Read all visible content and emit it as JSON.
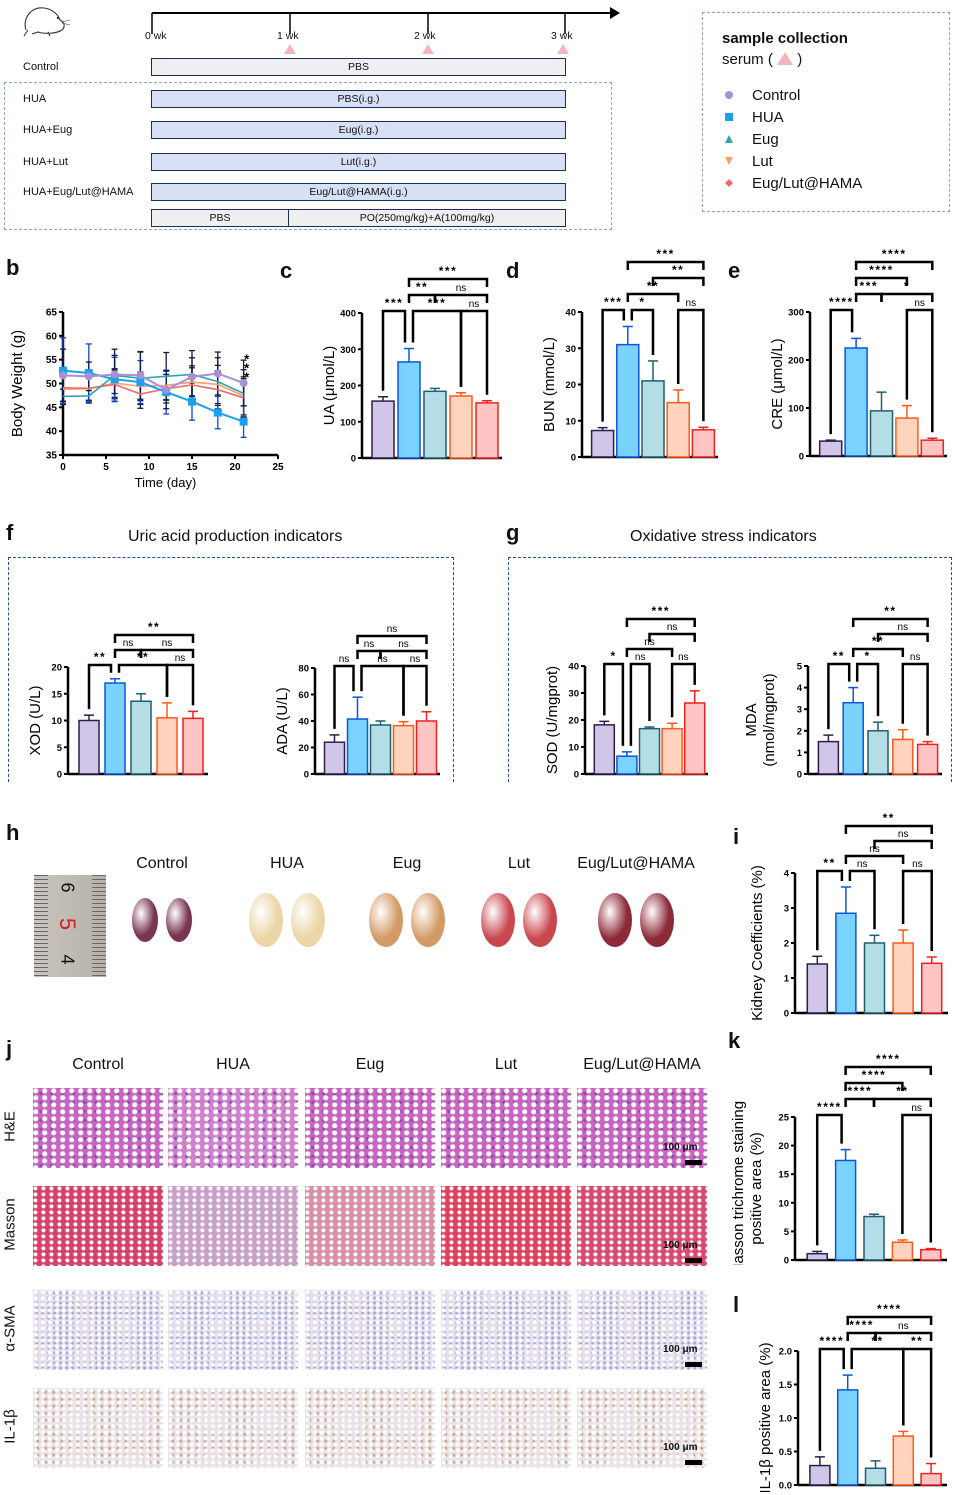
{
  "panel_a": {
    "timeline": {
      "ticks": [
        "0 wk",
        "1 wk",
        "2 wk",
        "3 wk"
      ]
    },
    "groups": [
      {
        "label": "Control",
        "bars": [
          {
            "text": "PBS",
            "style": "gray"
          }
        ]
      },
      {
        "label": "HUA",
        "bars": [
          {
            "text": "PBS(i.g.)",
            "style": "blue"
          }
        ]
      },
      {
        "label": "HUA+Eug",
        "bars": [
          {
            "text": "Eug(i.g.)",
            "style": "blue"
          }
        ]
      },
      {
        "label": "HUA+Lut",
        "bars": [
          {
            "text": "Lut(i.g.)",
            "style": "blue"
          }
        ]
      },
      {
        "label": "HUA+Eug/Lut@HAMA",
        "bars": [
          {
            "text": "Eug/Lut@HAMA(i.g.)",
            "style": "blue"
          }
        ]
      }
    ],
    "induction": {
      "pre": "PBS",
      "post": "PO(250mg/kg)+A(100mg/kg)"
    },
    "legend": {
      "title": "sample collection",
      "serum_label": "serum (",
      "serum_close": ")",
      "items": [
        {
          "label": "Control",
          "marker": "circle",
          "color": "#a98fd3"
        },
        {
          "label": "HUA",
          "marker": "square",
          "color": "#1aa0f0"
        },
        {
          "label": "Eug",
          "marker": "triangle-up",
          "color": "#2fa3b5"
        },
        {
          "label": "Lut",
          "marker": "triangle-down",
          "color": "#f5a06a"
        },
        {
          "label": "Eug/Lut@HAMA",
          "marker": "diamond",
          "color": "#f06a6a"
        }
      ]
    }
  },
  "labels": {
    "b": "b",
    "c": "c",
    "d": "d",
    "e": "e",
    "f": "f",
    "g": "g",
    "h": "h",
    "i": "i",
    "j": "j",
    "k": "k",
    "l": "l",
    "f_title": "Uric acid production indicators",
    "g_title": "Oxidative stress indicators"
  },
  "groups": [
    "Control",
    "HUA",
    "Eug",
    "Lut",
    "Eug/Lut@HAMA"
  ],
  "colors": {
    "fill": [
      "#d2c6e8",
      "#7ad3ff",
      "#b5dde6",
      "#ffd4bf",
      "#ffc4c4"
    ],
    "stroke": [
      "#2a1f4d",
      "#1055d8",
      "#1f5f70",
      "#ff5a1a",
      "#ee2020"
    ]
  },
  "chart_data": [
    {
      "id": "b",
      "type": "line",
      "xlabel": "Time (day)",
      "ylabel": "Body Weight (g)",
      "xlim": [
        0,
        25
      ],
      "ylim": [
        35,
        65
      ],
      "xticks": [
        0,
        5,
        10,
        15,
        20,
        25
      ],
      "yticks": [
        35,
        40,
        45,
        50,
        55,
        60,
        65
      ],
      "x": [
        0,
        3,
        6,
        9,
        12,
        15,
        18,
        21
      ],
      "annotation": "***",
      "series": [
        {
          "name": "Lut",
          "color": "#f5a06a",
          "values": [
            48.8,
            48.9,
            50.1,
            49.4,
            49.6,
            50.3,
            49.8,
            47.4
          ],
          "err": [
            2.5,
            2.5,
            3,
            3,
            3,
            3,
            4,
            4
          ]
        },
        {
          "name": "Eug/Lut@HAMA",
          "color": "#f06a6a",
          "values": [
            49.1,
            49.0,
            49.8,
            47.8,
            48.9,
            49.7,
            48.7,
            47.0
          ],
          "err": [
            3.5,
            2.5,
            3,
            3,
            3,
            4,
            4,
            4
          ]
        },
        {
          "name": "Eug",
          "color": "#2fa3b5",
          "values": [
            47.3,
            47.4,
            51.7,
            51.1,
            51.5,
            51.9,
            50.4,
            47.9
          ],
          "err": [
            1.5,
            1.5,
            5.5,
            5.5,
            5,
            5,
            5,
            5
          ]
        },
        {
          "name": "HUA",
          "color": "#1aa0f0",
          "values": [
            52.7,
            52.2,
            50.9,
            50.3,
            48.2,
            46.2,
            43.9,
            42.0
          ],
          "err": [
            6.9,
            6.1,
            4.6,
            4.5,
            4.6,
            3.9,
            3.4,
            3.3
          ]
        },
        {
          "name": "Control",
          "color": "#a98fd3",
          "values": [
            51.7,
            51.5,
            51.9,
            51.7,
            48.7,
            51.4,
            52.1,
            50.1
          ],
          "err": [
            5.5,
            3,
            4,
            5,
            4,
            4,
            4.5,
            4.8
          ]
        }
      ]
    },
    {
      "id": "c",
      "type": "bar",
      "ylabel": "UA (μmol/L)",
      "ylim": [
        0,
        400
      ],
      "yticks": [
        0,
        100,
        200,
        300,
        400
      ],
      "categories": [
        "Control",
        "HUA",
        "Eug",
        "Lut",
        "Eug/Lut@HAMA"
      ],
      "values": [
        157,
        265,
        184,
        171,
        152
      ],
      "err": [
        12,
        37,
        8,
        9,
        6
      ],
      "comparisons": [
        {
          "a": 0,
          "b": 1,
          "label": "***",
          "level": 0
        },
        {
          "a": 1,
          "b": 3,
          "label": "***",
          "level": 0
        },
        {
          "a": 3,
          "b": 4,
          "label": "ns",
          "level": 0
        },
        {
          "a": 1,
          "b": 2,
          "label": "**",
          "level": 1
        },
        {
          "a": 2,
          "b": 4,
          "label": "ns",
          "level": 1
        },
        {
          "a": 1,
          "b": 4,
          "label": "***",
          "level": 2
        }
      ]
    },
    {
      "id": "d",
      "type": "bar",
      "ylabel": "BUN (mmol/L)",
      "ylim": [
        0,
        40
      ],
      "yticks": [
        0,
        10,
        20,
        30,
        40
      ],
      "categories": [
        "Control",
        "HUA",
        "Eug",
        "Lut",
        "Eug/Lut@HAMA"
      ],
      "values": [
        7.3,
        31,
        21,
        15,
        7.5
      ],
      "err": [
        0.8,
        5,
        5.5,
        3.5,
        0.7
      ],
      "comparisons": [
        {
          "a": 0,
          "b": 1,
          "label": "***",
          "level": 0
        },
        {
          "a": 1,
          "b": 2,
          "label": "*",
          "level": 0
        },
        {
          "a": 3,
          "b": 4,
          "label": "ns",
          "level": 0
        },
        {
          "a": 1,
          "b": 3,
          "label": "**",
          "level": 1
        },
        {
          "a": 2,
          "b": 4,
          "label": "**",
          "level": 2
        },
        {
          "a": 1,
          "b": 4,
          "label": "***",
          "level": 3
        }
      ]
    },
    {
      "id": "e",
      "type": "bar",
      "ylabel": "CRE (μmol/L)",
      "ylim": [
        0,
        300
      ],
      "yticks": [
        0,
        100,
        200,
        300
      ],
      "categories": [
        "Control",
        "HUA",
        "Eug",
        "Lut",
        "Eug/Lut@HAMA"
      ],
      "values": [
        31,
        225,
        94,
        79,
        33
      ],
      "err": [
        2,
        20,
        39,
        26,
        4
      ],
      "comparisons": [
        {
          "a": 0,
          "b": 1,
          "label": "****",
          "level": 0
        },
        {
          "a": 3,
          "b": 4,
          "label": "ns",
          "level": 0
        },
        {
          "a": 1,
          "b": 2,
          "label": "***",
          "level": 1
        },
        {
          "a": 2,
          "b": 4,
          "label": "*",
          "level": 1
        },
        {
          "a": 1,
          "b": 3,
          "label": "****",
          "level": 2
        },
        {
          "a": 1,
          "b": 4,
          "label": "****",
          "level": 3
        }
      ]
    },
    {
      "id": "f1",
      "type": "bar",
      "ylabel": "XOD (U/L)",
      "ylim": [
        0,
        20
      ],
      "yticks": [
        0,
        5,
        10,
        15,
        20
      ],
      "categories": [
        "Control",
        "HUA",
        "Eug",
        "Lut",
        "Eug/Lut@HAMA"
      ],
      "values": [
        10,
        17,
        13.6,
        10.5,
        10.4
      ],
      "err": [
        1,
        0.8,
        1.4,
        2.8,
        1.3
      ],
      "comparisons": [
        {
          "a": 0,
          "b": 1,
          "label": "**",
          "level": 0
        },
        {
          "a": 1,
          "b": 3,
          "label": "**",
          "level": 0
        },
        {
          "a": 3,
          "b": 4,
          "label": "ns",
          "level": 0
        },
        {
          "a": 1,
          "b": 2,
          "label": "ns",
          "level": 1
        },
        {
          "a": 2,
          "b": 4,
          "label": "ns",
          "level": 1
        },
        {
          "a": 1,
          "b": 4,
          "label": "**",
          "level": 2
        }
      ]
    },
    {
      "id": "f2",
      "type": "bar",
      "ylabel": "ADA (U/L)",
      "ylim": [
        0,
        80
      ],
      "yticks": [
        0,
        20,
        40,
        60,
        80
      ],
      "categories": [
        "Control",
        "HUA",
        "Eug",
        "Lut",
        "Eug/Lut@HAMA"
      ],
      "values": [
        24,
        41.5,
        37,
        36.5,
        40
      ],
      "err": [
        5.5,
        16.5,
        3,
        3,
        7
      ],
      "comparisons": [
        {
          "a": 0,
          "b": 1,
          "label": "ns",
          "level": 0
        },
        {
          "a": 1,
          "b": 3,
          "label": "ns",
          "level": 0
        },
        {
          "a": 3,
          "b": 4,
          "label": "ns",
          "level": 0
        },
        {
          "a": 1,
          "b": 2,
          "label": "ns",
          "level": 1
        },
        {
          "a": 2,
          "b": 4,
          "label": "ns",
          "level": 1
        },
        {
          "a": 1,
          "b": 4,
          "label": "ns",
          "level": 2
        }
      ]
    },
    {
      "id": "g1",
      "type": "bar",
      "ylabel": "SOD (U/mgprot)",
      "ylim": [
        0,
        40
      ],
      "yticks": [
        0,
        10,
        20,
        30,
        40
      ],
      "categories": [
        "Control",
        "HUA",
        "Eug",
        "Lut",
        "Eug/Lut@HAMA"
      ],
      "values": [
        18.2,
        6.6,
        16.8,
        16.8,
        26.3
      ],
      "err": [
        1.3,
        1.6,
        0.6,
        2,
        4.5
      ],
      "comparisons": [
        {
          "a": 0,
          "b": 1,
          "label": "*",
          "level": 0
        },
        {
          "a": 1,
          "b": 2,
          "label": "ns",
          "level": 0
        },
        {
          "a": 3,
          "b": 4,
          "label": "ns",
          "level": 0
        },
        {
          "a": 1,
          "b": 3,
          "label": "ns",
          "level": 1
        },
        {
          "a": 2,
          "b": 4,
          "label": "ns",
          "level": 2
        },
        {
          "a": 1,
          "b": 4,
          "label": "***",
          "level": 3
        }
      ]
    },
    {
      "id": "g2",
      "type": "bar",
      "ylabel": "MDA\n(nmol/mgprot)",
      "ylim": [
        0,
        5
      ],
      "yticks": [
        0,
        1,
        2,
        3,
        4,
        5
      ],
      "categories": [
        "Control",
        "HUA",
        "Eug",
        "Lut",
        "Eug/Lut@HAMA"
      ],
      "values": [
        1.5,
        3.3,
        2.0,
        1.6,
        1.37
      ],
      "err": [
        0.3,
        0.7,
        0.4,
        0.45,
        0.13
      ],
      "comparisons": [
        {
          "a": 0,
          "b": 1,
          "label": "**",
          "level": 0
        },
        {
          "a": 1,
          "b": 2,
          "label": "*",
          "level": 0
        },
        {
          "a": 3,
          "b": 4,
          "label": "ns",
          "level": 0
        },
        {
          "a": 1,
          "b": 3,
          "label": "**",
          "level": 1
        },
        {
          "a": 2,
          "b": 4,
          "label": "ns",
          "level": 2
        },
        {
          "a": 1,
          "b": 4,
          "label": "**",
          "level": 3
        }
      ]
    },
    {
      "id": "i",
      "type": "bar",
      "ylabel": "Kidney Coefficients (%)",
      "ylim": [
        0,
        4
      ],
      "yticks": [
        0,
        1,
        2,
        3,
        4
      ],
      "categories": [
        "Control",
        "HUA",
        "Eug",
        "Lut",
        "Eug/Lut@HAMA"
      ],
      "values": [
        1.4,
        2.85,
        2.0,
        2.0,
        1.42
      ],
      "err": [
        0.22,
        0.75,
        0.22,
        0.37,
        0.18
      ],
      "comparisons": [
        {
          "a": 0,
          "b": 1,
          "label": "**",
          "level": 0
        },
        {
          "a": 1,
          "b": 2,
          "label": "ns",
          "level": 0
        },
        {
          "a": 3,
          "b": 4,
          "label": "ns",
          "level": 0
        },
        {
          "a": 1,
          "b": 3,
          "label": "ns",
          "level": 1
        },
        {
          "a": 2,
          "b": 4,
          "label": "ns",
          "level": 2
        },
        {
          "a": 1,
          "b": 4,
          "label": "**",
          "level": 3
        }
      ]
    },
    {
      "id": "k",
      "type": "bar",
      "ylabel": "Masson trichrome staining\npositive area (%)",
      "ylim": [
        0,
        25
      ],
      "yticks": [
        0,
        5,
        10,
        15,
        20,
        25
      ],
      "categories": [
        "Control",
        "HUA",
        "Eug",
        "Lut",
        "Eug/Lut@HAMA"
      ],
      "values": [
        1.1,
        17.4,
        7.6,
        3.1,
        1.8
      ],
      "err": [
        0.4,
        1.9,
        0.4,
        0.4,
        0.2
      ],
      "comparisons": [
        {
          "a": 0,
          "b": 1,
          "label": "****",
          "level": 0
        },
        {
          "a": 3,
          "b": 4,
          "label": "ns",
          "level": 0
        },
        {
          "a": 1,
          "b": 2,
          "label": "****",
          "level": 1
        },
        {
          "a": 2,
          "b": 4,
          "label": "**",
          "level": 1
        },
        {
          "a": 1,
          "b": 3,
          "label": "****",
          "level": 2
        },
        {
          "a": 1,
          "b": 4,
          "label": "****",
          "level": 3
        }
      ]
    },
    {
      "id": "l",
      "type": "bar",
      "ylabel": "IL-1β positive area (%)",
      "ylim": [
        0,
        2.0
      ],
      "yticks": [
        0.0,
        0.5,
        1.0,
        1.5,
        2.0
      ],
      "categories": [
        "Control",
        "HUA",
        "Eug",
        "Lut",
        "Eug/Lut@HAMA"
      ],
      "values": [
        0.29,
        1.42,
        0.25,
        0.73,
        0.17
      ],
      "err": [
        0.13,
        0.22,
        0.11,
        0.07,
        0.15
      ],
      "comparisons": [
        {
          "a": 0,
          "b": 1,
          "label": "****",
          "level": 0
        },
        {
          "a": 1,
          "b": 3,
          "label": "**",
          "level": 0
        },
        {
          "a": 3,
          "b": 4,
          "label": "**",
          "level": 0
        },
        {
          "a": 1,
          "b": 2,
          "label": "****",
          "level": 1
        },
        {
          "a": 2,
          "b": 4,
          "label": "ns",
          "level": 1
        },
        {
          "a": 1,
          "b": 4,
          "label": "****",
          "level": 2
        }
      ]
    }
  ],
  "panel_h": {
    "ruler_numbers": [
      "6",
      "5",
      "4"
    ],
    "groups": [
      "Control",
      "HUA",
      "Eug",
      "Lut",
      "Eug/Lut@HAMA"
    ],
    "kidney_colors": [
      "#7a3552",
      "#ead6a6",
      "#d49a66",
      "#c9474f",
      "#8d2a38"
    ]
  },
  "panel_j": {
    "columns": [
      "Control",
      "HUA",
      "Eug",
      "Lut",
      "Eug/Lut@HAMA"
    ],
    "rows": [
      "H&E",
      "Masson",
      "α-SMA",
      "IL-1β"
    ],
    "scale_bar": "100 μm",
    "row_colors": [
      "#c865c0",
      "#d8456e",
      "#e8e0ec",
      "#e9e2e8"
    ]
  }
}
